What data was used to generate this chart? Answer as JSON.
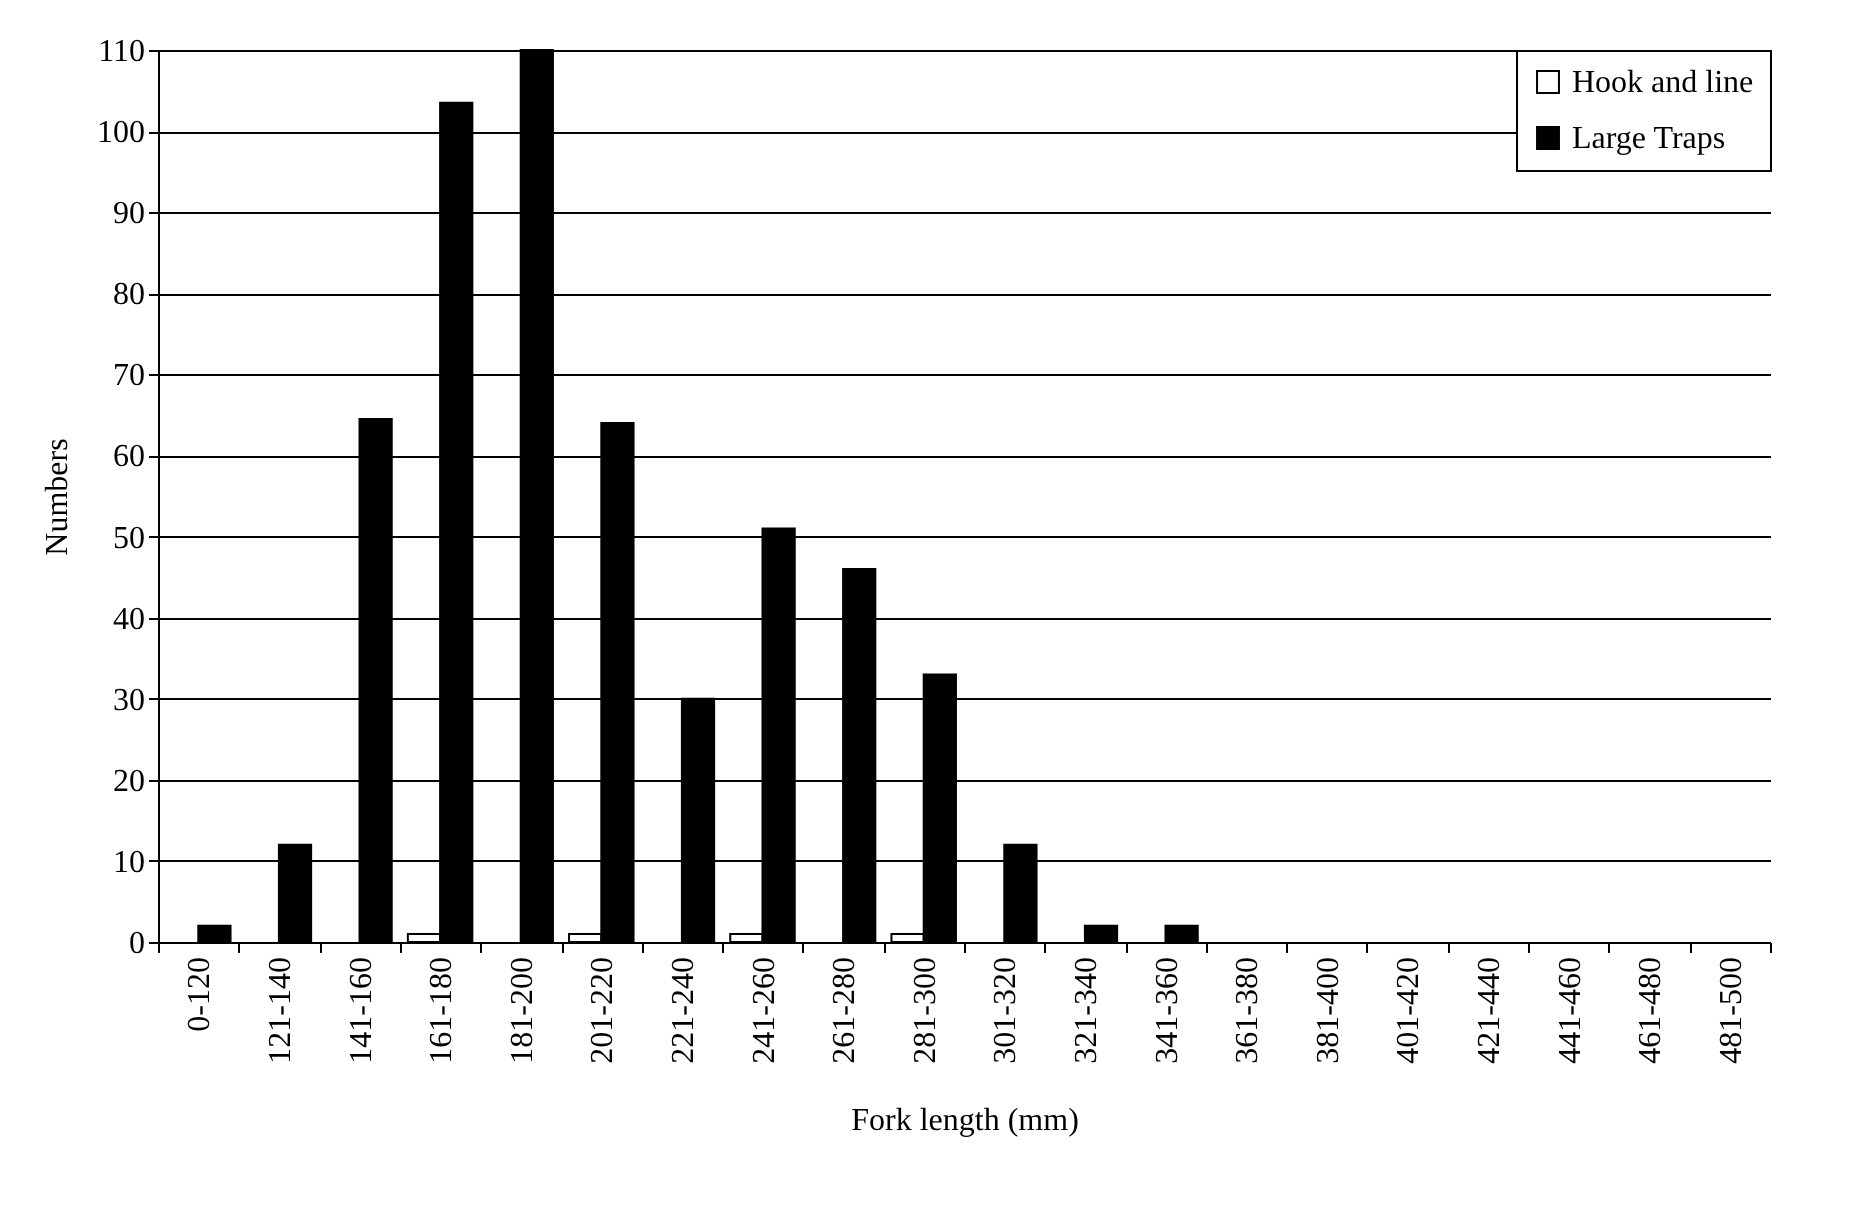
{
  "chart_data": {
    "type": "bar",
    "xlabel": "Fork length (mm)",
    "ylabel": "Numbers",
    "categories": [
      "0-120",
      "121-140",
      "141-160",
      "161-180",
      "181-200",
      "201-220",
      "221-240",
      "241-260",
      "261-280",
      "281-300",
      "301-320",
      "321-340",
      "341-360",
      "361-380",
      "381-400",
      "401-420",
      "421-440",
      "441-460",
      "461-480",
      "481-500"
    ],
    "series": [
      {
        "name": "Hook and line",
        "color": "#ffffff",
        "values": [
          0,
          0,
          0,
          1,
          0,
          1,
          0,
          1,
          0,
          1,
          0,
          0,
          0,
          0,
          0,
          0,
          0,
          0,
          0,
          0
        ]
      },
      {
        "name": "Large Traps",
        "color": "#000000",
        "values": [
          2,
          12,
          64.5,
          103.5,
          110,
          64,
          30,
          51,
          46,
          33,
          12,
          2,
          2,
          0,
          0,
          0,
          0,
          0,
          0,
          0
        ]
      }
    ],
    "ylim": [
      0,
      110
    ],
    "yticks": [
      0,
      10,
      20,
      30,
      40,
      50,
      60,
      70,
      80,
      90,
      100,
      110
    ],
    "grid": "y",
    "legend": "top right"
  }
}
